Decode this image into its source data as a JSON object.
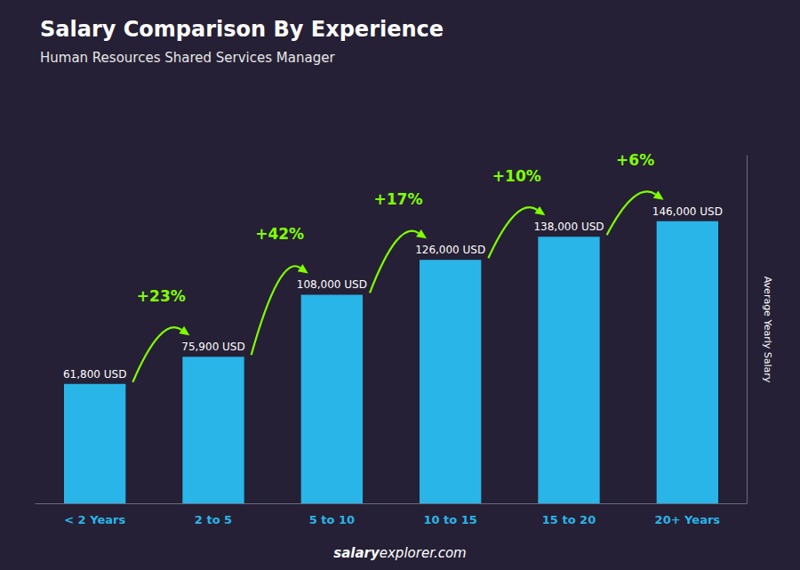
{
  "chart_data": {
    "type": "bar",
    "title": "Salary Comparison By Experience",
    "subtitle": "Human Resources Shared Services Manager",
    "categories": [
      "< 2 Years",
      "2 to 5",
      "5 to 10",
      "10 to 15",
      "15 to 20",
      "20+ Years"
    ],
    "values": [
      61800,
      75900,
      108000,
      126000,
      138000,
      146000
    ],
    "value_labels": [
      "61,800 USD",
      "75,900 USD",
      "108,000 USD",
      "126,000 USD",
      "138,000 USD",
      "146,000 USD"
    ],
    "data_labels": true,
    "color": "#29B5E8",
    "ylim": [
      0,
      180000
    ],
    "ylabel": "Average Yearly Salary",
    "tick_labels": "x",
    "grid": false,
    "annotations": [
      {
        "text": "+23%",
        "color": "#80FF00"
      },
      {
        "text": "+42%",
        "color": "#80FF00"
      },
      {
        "text": "+17%",
        "color": "#80FF00"
      },
      {
        "text": "+10%",
        "color": "#80FF00"
      },
      {
        "text": "+6%",
        "color": "#80FF00"
      }
    ],
    "footer": [
      "salary",
      "explorer.com"
    ]
  }
}
